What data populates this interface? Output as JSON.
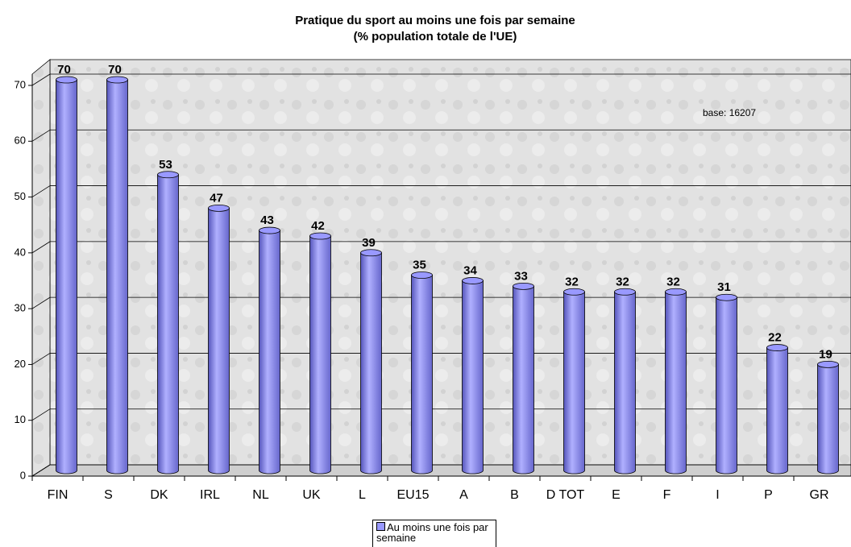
{
  "chart_data": {
    "type": "bar",
    "title": "Pratique du sport au moins une fois par semaine",
    "subtitle": "(% population totale de l'UE)",
    "annotation": "base: 16207",
    "categories": [
      "FIN",
      "S",
      "DK",
      "IRL",
      "NL",
      "UK",
      "L",
      "EU15",
      "A",
      "B",
      "D TOT",
      "E",
      "F",
      "I",
      "P",
      "GR"
    ],
    "series": [
      {
        "name": "Au moins une fois par semaine",
        "color": "#9999ff",
        "values": [
          70,
          70,
          53,
          47,
          43,
          42,
          39,
          35,
          34,
          33,
          32,
          32,
          32,
          31,
          22,
          19
        ]
      }
    ],
    "ylim": [
      0,
      70
    ],
    "yticks": [
      0,
      10,
      20,
      30,
      40,
      50,
      60,
      70
    ],
    "grid": true,
    "legend": "bottom"
  }
}
